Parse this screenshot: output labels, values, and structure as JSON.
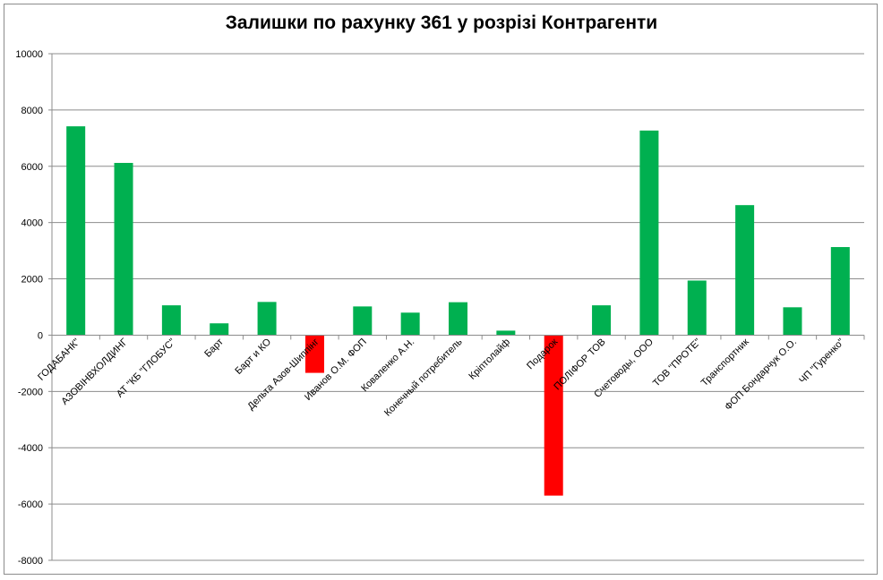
{
  "chart_data": {
    "type": "bar",
    "title": "Залишки по рахунку 361 у розрізі Контрагенти",
    "xlabel": "",
    "ylabel": "",
    "ylim": [
      -8000,
      10000
    ],
    "yticks": [
      10000,
      8000,
      6000,
      4000,
      2000,
      0,
      -2000,
      -4000,
      -6000,
      -8000
    ],
    "grid": true,
    "legend": "none",
    "categories": [
      "ГОДАБАНК\"",
      "АЗОВІНВХОЛДИНГ",
      "АТ \"КБ \"ГЛОБУС\"",
      "Барт",
      "Барт и КО",
      "Дельта Азов-Шиппінг",
      "Иванов О.М. ФОП",
      "Коваленко А.Н.",
      "Конечный потребитель",
      "Кріптолайф",
      "Подарок",
      "ПОЛІФОР ТОВ",
      "Счетоводы, ООО",
      "ТОВ \"ПРОТЕ\"",
      "Транспортник",
      "ФОП Бондарчук О.О.",
      "ЧП \"Гуренко\""
    ],
    "values": [
      7420,
      6120,
      1060,
      420,
      1180,
      -1340,
      1020,
      800,
      1170,
      160,
      -5700,
      1060,
      7270,
      1940,
      4620,
      990,
      3130
    ],
    "colors": {
      "positive": "#00b050",
      "negative": "#ff0000",
      "grid": "#8c8c8c",
      "axis": "#8c8c8c"
    }
  }
}
